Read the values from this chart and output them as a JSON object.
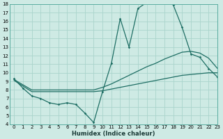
{
  "xlabel": "Humidex (Indice chaleur)",
  "bg_color": "#ceeae4",
  "line_color": "#1e6e64",
  "grid_color": "#aad4cc",
  "xlim": [
    -0.5,
    23
  ],
  "ylim": [
    4,
    18
  ],
  "yticks": [
    4,
    5,
    6,
    7,
    8,
    9,
    10,
    11,
    12,
    13,
    14,
    15,
    16,
    17,
    18
  ],
  "xticks": [
    0,
    1,
    2,
    3,
    4,
    5,
    6,
    7,
    8,
    9,
    10,
    11,
    12,
    13,
    14,
    15,
    16,
    17,
    18,
    19,
    20,
    21,
    22,
    23
  ],
  "curve1_x": [
    0,
    1,
    2,
    3,
    4,
    5,
    6,
    7,
    8,
    9,
    10,
    11,
    12,
    13,
    14,
    15,
    16,
    17,
    18,
    19,
    20,
    21,
    22,
    23
  ],
  "curve1_y": [
    9.3,
    8.2,
    7.3,
    7.0,
    6.5,
    6.3,
    6.5,
    6.3,
    5.3,
    4.2,
    7.8,
    11.1,
    16.3,
    13.0,
    17.5,
    18.2,
    18.4,
    18.5,
    17.9,
    15.3,
    12.2,
    11.8,
    10.5,
    9.5
  ],
  "curve2_x": [
    0,
    2,
    9,
    10,
    11,
    12,
    13,
    14,
    15,
    16,
    17,
    18,
    19,
    20,
    21,
    22,
    23
  ],
  "curve2_y": [
    9.2,
    8.0,
    8.0,
    8.3,
    8.7,
    9.2,
    9.7,
    10.2,
    10.7,
    11.1,
    11.6,
    12.0,
    12.4,
    12.5,
    12.3,
    11.7,
    10.5
  ],
  "curve3_x": [
    0,
    2,
    9,
    10,
    11,
    12,
    13,
    14,
    15,
    16,
    17,
    18,
    19,
    20,
    21,
    22,
    23
  ],
  "curve3_y": [
    9.1,
    7.8,
    7.8,
    7.9,
    8.1,
    8.3,
    8.5,
    8.7,
    8.9,
    9.1,
    9.3,
    9.5,
    9.7,
    9.8,
    9.9,
    10.0,
    10.0
  ]
}
